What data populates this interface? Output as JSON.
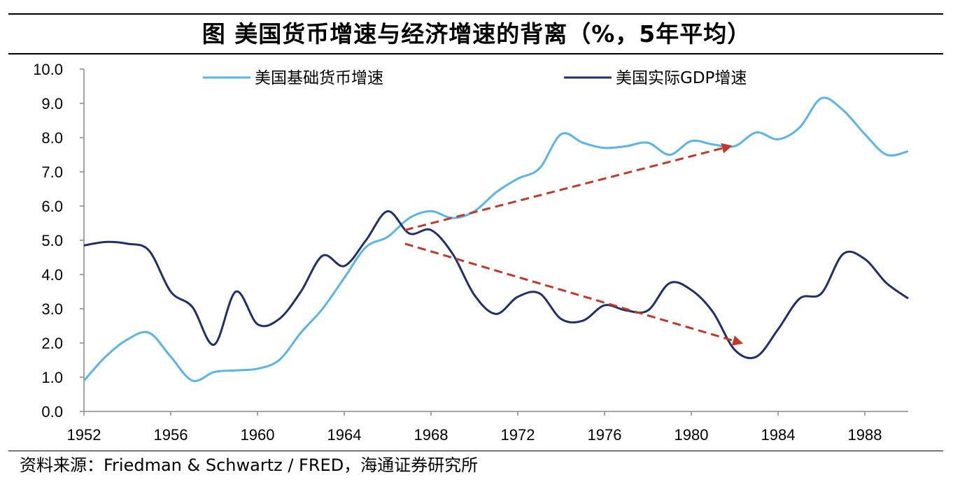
{
  "chart_data": {
    "type": "line",
    "title": "图  美国货币增速与经济增速的背离（%，5年平均）",
    "xlabel": "",
    "ylabel": "",
    "xlim": [
      1952,
      1990
    ],
    "ylim": [
      0,
      10
    ],
    "x_ticks": [
      "1952",
      "1956",
      "1960",
      "1964",
      "1968",
      "1972",
      "1976",
      "1980",
      "1984",
      "1988"
    ],
    "y_ticks": [
      "0.0",
      "1.0",
      "2.0",
      "3.0",
      "4.0",
      "5.0",
      "6.0",
      "7.0",
      "8.0",
      "9.0",
      "10.0"
    ],
    "legend_position": "top",
    "series": [
      {
        "name": "美国基础货币增速",
        "color": "#5ab4e6",
        "x": [
          1952,
          1953,
          1954,
          1955,
          1956,
          1957,
          1958,
          1959,
          1960,
          1961,
          1962,
          1963,
          1964,
          1965,
          1966,
          1967,
          1968,
          1969,
          1970,
          1971,
          1972,
          1973,
          1974,
          1975,
          1976,
          1977,
          1978,
          1979,
          1980,
          1981,
          1982,
          1983,
          1984,
          1985,
          1986,
          1987,
          1988,
          1989,
          1990
        ],
        "values": [
          0.9,
          1.6,
          2.1,
          2.3,
          1.6,
          0.9,
          1.15,
          1.2,
          1.25,
          1.5,
          2.3,
          3.0,
          3.9,
          4.8,
          5.1,
          5.65,
          5.85,
          5.65,
          5.85,
          6.4,
          6.8,
          7.1,
          8.1,
          7.85,
          7.7,
          7.75,
          7.85,
          7.5,
          7.9,
          7.8,
          7.75,
          8.15,
          7.95,
          8.3,
          9.15,
          8.8,
          8.1,
          7.5,
          7.6
        ]
      },
      {
        "name": "美国实际GDP增速",
        "color": "#1f2f6b",
        "x": [
          1952,
          1953,
          1954,
          1955,
          1956,
          1957,
          1958,
          1959,
          1960,
          1961,
          1962,
          1963,
          1964,
          1965,
          1966,
          1967,
          1968,
          1969,
          1970,
          1971,
          1972,
          1973,
          1974,
          1975,
          1976,
          1977,
          1978,
          1979,
          1980,
          1981,
          1982,
          1983,
          1984,
          1985,
          1986,
          1987,
          1988,
          1989,
          1990
        ],
        "values": [
          4.85,
          4.95,
          4.9,
          4.7,
          3.5,
          3.05,
          1.95,
          3.5,
          2.55,
          2.7,
          3.5,
          4.55,
          4.25,
          5.0,
          5.85,
          5.2,
          5.3,
          4.6,
          3.4,
          2.85,
          3.35,
          3.45,
          2.7,
          2.65,
          3.1,
          2.95,
          2.95,
          3.75,
          3.55,
          2.9,
          1.8,
          1.6,
          2.4,
          3.3,
          3.45,
          4.6,
          4.45,
          3.75,
          3.3
        ]
      }
    ],
    "annotations": [
      {
        "type": "arrow",
        "style": "dashed",
        "color": "#c0392b",
        "from": [
          1966.8,
          5.3
        ],
        "to": [
          1981.8,
          7.75
        ]
      },
      {
        "type": "arrow",
        "style": "dashed",
        "color": "#c0392b",
        "from": [
          1966.8,
          4.9
        ],
        "to": [
          1982.3,
          2.0
        ]
      }
    ]
  },
  "source_note": "资料来源：Friedman & Schwartz / FRED，海通证券研究所"
}
